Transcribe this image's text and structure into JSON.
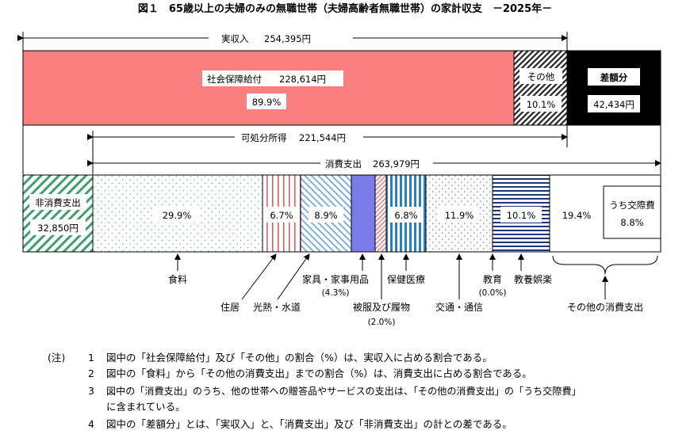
{
  "title": "図１　65歳以上の夫婦のみの無職世帯（夫婦高齢者無職世帯）の家計収支　－2025年－",
  "colors": {
    "social_security": "#fb7f7f",
    "surplus": "#000000",
    "non_consumption_hatch": "#3e9e6e",
    "utilities_hatch": "#d86060",
    "furniture_hatch": "#7fb0d8",
    "clothing_hatch": "#e08080",
    "medical_hatch": "#2a7fc0",
    "transport_dots": "#7f90c8",
    "culture_lines": "#203878",
    "education_fill": "#7a7ae8",
    "food_dots": "#60b0a0"
  },
  "chart_data": {
    "type": "stacked-bar",
    "units": "円",
    "income_row": {
      "label_total": "実収入",
      "total": 254395,
      "total_text": "254,395円",
      "segments": [
        {
          "name": "社会保障給付",
          "value_text": "228,614円",
          "percent_text": "89.9%",
          "value": 228614,
          "percent": 89.9
        },
        {
          "name": "その他",
          "percent_text": "10.1%",
          "percent": 10.1
        },
        {
          "name": "差額分",
          "value_text": "42,434円",
          "value": 42434
        }
      ]
    },
    "disposable": {
      "label": "可処分所得",
      "value_text": "221,544円",
      "value": 221544
    },
    "consumption": {
      "label": "消費支出",
      "value_text": "263,979円",
      "value": 263979
    },
    "non_consumption": {
      "label": "非消費支出",
      "value_text": "32,850円",
      "value": 32850
    },
    "expense_segments": [
      {
        "name": "食料",
        "percent_text": "29.9%",
        "percent": 29.9
      },
      {
        "name": "住居",
        "percent_text": "6.7%",
        "percent": 6.7
      },
      {
        "name": "光熱・水道",
        "percent_text": "8.9%",
        "percent": 8.9
      },
      {
        "name": "家具・家事用品",
        "percent_text": "(4.3%)",
        "percent": 4.3
      },
      {
        "name": "被服及び履物",
        "percent_text": "(2.0%)",
        "percent": 2.0
      },
      {
        "name": "保健医療",
        "percent_text": "6.8%",
        "percent": 6.8
      },
      {
        "name": "交通・通信",
        "percent_text": "11.9%",
        "percent": 11.9
      },
      {
        "name": "教育",
        "percent_text": "(0.0%)",
        "percent": 0.0
      },
      {
        "name": "教養娯楽",
        "percent_text": "10.1%",
        "percent": 10.1
      },
      {
        "name": "その他の消費支出",
        "percent_text": "19.4%",
        "percent": 19.4
      }
    ],
    "sub_item": {
      "name": "うち交際費",
      "percent_text": "8.8%",
      "percent": 8.8
    }
  },
  "notes": {
    "head": "(注)",
    "items": [
      {
        "num": "1",
        "text": "図中の「社会保障給付」及び「その他」の割合（%）は、実収入に占める割合である。"
      },
      {
        "num": "2",
        "text": "図中の「食料」から「その他の消費支出」までの割合（%）は、消費支出に占める割合である。"
      },
      {
        "num": "3",
        "text": "図中の「消費支出」のうち、他の世帯への贈答品やサービスの支出は、「その他の消費支出」の「うち交際費」",
        "cont": "に含まれている。"
      },
      {
        "num": "4",
        "text": "図中の「差額分」とは、「実収入」と、「消費支出」及び「非消費支出」の計との差である。"
      }
    ]
  }
}
